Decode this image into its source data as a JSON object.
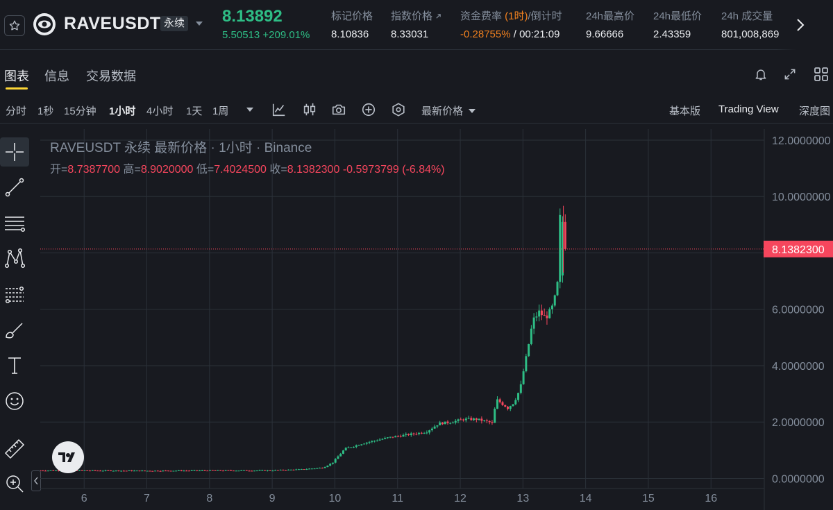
{
  "header": {
    "symbol": "RAVEUSDT",
    "contract_type": "永续",
    "last_price": "8.13892",
    "price_change": "5.50513",
    "price_change_pct": "+209.01%",
    "stats": [
      {
        "label": "标记价格",
        "value": "8.10836"
      },
      {
        "label": "指数价格",
        "value": "8.33031"
      },
      {
        "label_prefix": "资金费率 ",
        "label_highlight": "(1时)",
        "label_suffix": "/倒计时",
        "value_neg": "-0.28755%",
        "value_rest": " / 00:21:09"
      },
      {
        "label": "24h最高价",
        "value": "9.66666"
      },
      {
        "label": "24h最低价",
        "value": "2.43359"
      },
      {
        "label": "24h 成交量",
        "value": "801,008,869"
      }
    ]
  },
  "tabs": [
    {
      "label": "图表",
      "active": true
    },
    {
      "label": "信息",
      "active": false
    },
    {
      "label": "交易数据",
      "active": false
    }
  ],
  "toolbar": {
    "timeframes": [
      "分时",
      "1秒",
      "15分钟",
      "1小时",
      "4小时",
      "1天",
      "1周"
    ],
    "active_timeframe": "1小时",
    "price_source": "最新价格",
    "views": [
      "基本版",
      "Trading View",
      "深度图"
    ],
    "active_view": "Trading View"
  },
  "legend": {
    "title": "RAVEUSDT 永续 最新价格 · 1小时 · Binance",
    "open_label": "开=",
    "open": "8.7387700",
    "high_label": "高=",
    "high": "8.9020000",
    "low_label": "低=",
    "low": "7.4024500",
    "close_label": "收=",
    "close": "8.1382300",
    "change": "-0.5973799 (-6.84%)"
  },
  "colors": {
    "up": "#2ebd85",
    "down": "#f6465d",
    "background": "#181a20",
    "price_tag": "#f6465d"
  },
  "chart_data": {
    "type": "candlestick",
    "x_ticks": [
      "6",
      "7",
      "8",
      "9",
      "10",
      "11",
      "12",
      "13",
      "14",
      "15",
      "16"
    ],
    "y_ticks": [
      "12.0000000",
      "10.0000000",
      "8.1382300",
      "6.0000000",
      "4.0000000",
      "2.0000000",
      "0.0000000"
    ],
    "ylim": [
      -0.0375,
      12.0
    ],
    "xlim": [
      5.3,
      16.85
    ],
    "current_price": 8.13823,
    "current_price_label": "8.1382300",
    "price_path": [
      [
        5.3,
        0.28
      ],
      [
        6.0,
        0.28
      ],
      [
        7.0,
        0.27
      ],
      [
        8.0,
        0.28
      ],
      [
        9.0,
        0.28
      ],
      [
        9.5,
        0.32
      ],
      [
        9.85,
        0.38
      ],
      [
        10.0,
        0.55
      ],
      [
        10.2,
        1.05
      ],
      [
        10.5,
        1.25
      ],
      [
        10.9,
        1.45
      ],
      [
        11.2,
        1.55
      ],
      [
        11.5,
        1.65
      ],
      [
        11.7,
        1.95
      ],
      [
        11.9,
        2.0
      ],
      [
        12.1,
        2.1
      ],
      [
        12.3,
        2.1
      ],
      [
        12.5,
        2.0
      ],
      [
        12.55,
        1.95
      ],
      [
        12.62,
        2.8
      ],
      [
        12.8,
        2.5
      ],
      [
        12.9,
        2.7
      ],
      [
        13.0,
        3.2
      ],
      [
        13.05,
        3.8
      ],
      [
        13.12,
        4.6
      ],
      [
        13.2,
        5.6
      ],
      [
        13.3,
        5.9
      ],
      [
        13.4,
        5.7
      ],
      [
        13.5,
        6.0
      ],
      [
        13.55,
        6.4
      ],
      [
        13.6,
        7.0
      ],
      [
        13.63,
        9.3
      ],
      [
        13.66,
        8.9
      ],
      [
        13.68,
        8.14
      ]
    ]
  }
}
